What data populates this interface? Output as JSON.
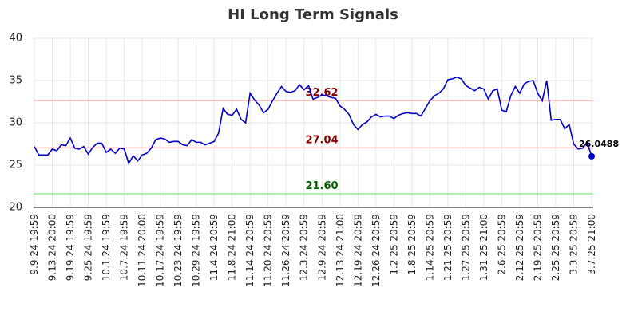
{
  "chart_data": {
    "type": "line",
    "title": "HI Long Term Signals",
    "categories": [
      "9.9.24 19:59",
      null,
      null,
      null,
      "9.13.24 20:00",
      null,
      null,
      null,
      "9.19.24 19:59",
      null,
      null,
      null,
      "9.25.24 19:59",
      null,
      null,
      null,
      "10.1.24 19:59",
      null,
      null,
      null,
      "10.7.24 19:59",
      null,
      null,
      null,
      "10.11.24 20:00",
      null,
      null,
      null,
      "10.17.24 19:59",
      null,
      null,
      null,
      "10.23.24 19:59",
      null,
      null,
      null,
      "10.29.24 19:59",
      null,
      null,
      null,
      "11.4.24 20:59",
      null,
      null,
      null,
      "11.8.24 21:00",
      null,
      null,
      null,
      "11.14.24 20:59",
      null,
      null,
      null,
      "11.20.24 20:59",
      null,
      null,
      null,
      "11.26.24 20:59",
      null,
      null,
      null,
      "12.3.24 20:59",
      null,
      null,
      null,
      "12.9.24 20:59",
      null,
      null,
      null,
      "12.13.24 21:00",
      null,
      null,
      null,
      "12.19.24 20:59",
      null,
      null,
      null,
      "12.26.24 20:59",
      null,
      null,
      null,
      "1.2.25 20:59",
      null,
      null,
      null,
      "1.8.25 20:59",
      null,
      null,
      null,
      "1.14.25 20:59",
      null,
      null,
      null,
      "1.21.25 20:59",
      null,
      null,
      null,
      "1.27.25 20:59",
      null,
      null,
      null,
      "1.31.25 21:00",
      null,
      null,
      null,
      "2.6.25 20:59",
      null,
      null,
      null,
      "2.12.25 20:59",
      null,
      null,
      null,
      "2.19.25 20:59",
      null,
      null,
      null,
      "2.25.25 20:59",
      null,
      null,
      null,
      "3.3.25 20:59",
      null,
      null,
      null,
      "3.7.25 21:00"
    ],
    "series": [
      {
        "color": "#0000cc",
        "values": [
          27.2,
          26.2,
          26.2,
          26.2,
          26.9,
          26.7,
          27.4,
          27.3,
          28.2,
          27.0,
          26.9,
          27.2,
          26.3,
          27.1,
          27.6,
          27.6,
          26.5,
          26.9,
          26.4,
          27.0,
          26.9,
          25.2,
          26.1,
          25.5,
          26.2,
          26.4,
          27.0,
          28.0,
          28.2,
          28.1,
          27.7,
          27.8,
          27.8,
          27.4,
          27.3,
          28.0,
          27.7,
          27.7,
          27.4,
          27.6,
          27.8,
          28.8,
          31.7,
          31.0,
          30.9,
          31.6,
          30.4,
          30.0,
          33.5,
          32.7,
          32.1,
          31.2,
          31.6,
          32.6,
          33.5,
          34.3,
          33.7,
          33.6,
          33.8,
          34.5,
          33.9,
          34.4,
          32.8,
          33.0,
          33.3,
          33.2,
          33.0,
          32.9,
          32.0,
          31.6,
          31.0,
          29.8,
          29.2,
          29.8,
          30.1,
          30.7,
          31.0,
          30.7,
          30.8,
          30.8,
          30.5,
          30.9,
          31.1,
          31.2,
          31.1,
          31.1,
          30.8,
          31.7,
          32.6,
          33.2,
          33.5,
          34.0,
          35.1,
          35.2,
          35.4,
          35.2,
          34.4,
          34.1,
          33.8,
          34.2,
          34.0,
          32.8,
          33.8,
          34.0,
          31.5,
          31.3,
          33.2,
          34.3,
          33.5,
          34.6,
          34.9,
          35.0,
          33.5,
          32.6,
          35.0,
          30.3,
          30.4,
          30.4,
          29.3,
          29.8,
          27.5,
          26.9,
          27.0,
          27.7,
          26.0488
        ]
      }
    ],
    "hlines": [
      {
        "value": 32.62,
        "color": "#ffbbbb",
        "label_color": "#8b0000"
      },
      {
        "value": 27.04,
        "color": "#ffbbbb",
        "label_color": "#8b0000"
      },
      {
        "value": {
          "value": 21.6,
          "label": "21.60"
        },
        "color": "#90ee90",
        "label_color": "#006400"
      }
    ],
    "ylim": [
      20,
      40
    ],
    "yticks": [
      20,
      25,
      30,
      35,
      40
    ],
    "grid": true
  }
}
